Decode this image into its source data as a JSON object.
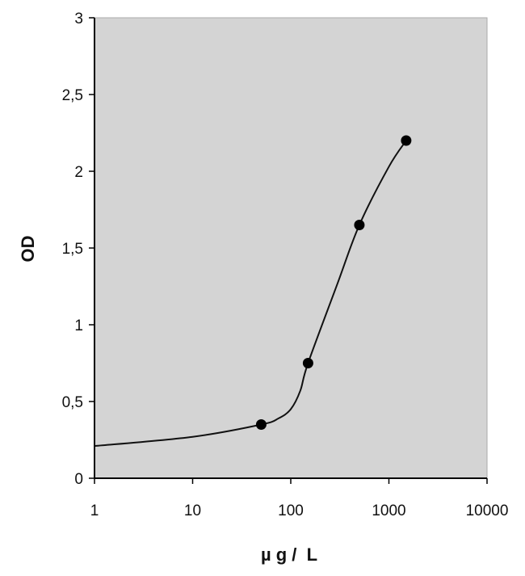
{
  "chart_data": {
    "type": "scatter",
    "title": "",
    "xlabel": "µ g /  L",
    "ylabel": "OD",
    "x_scale": "log",
    "xlim": [
      1,
      10000
    ],
    "ylim": [
      0,
      3
    ],
    "x_ticks": [
      1,
      10,
      100,
      1000,
      10000
    ],
    "x_tick_labels": [
      "1",
      "10",
      "100",
      "1000",
      "10000"
    ],
    "y_ticks": [
      0,
      0.5,
      1,
      1.5,
      2,
      2.5,
      3
    ],
    "y_tick_labels": [
      "0",
      "0,5",
      "1",
      "1,5",
      "2",
      "2,5",
      "3"
    ],
    "grid": false,
    "plot_background": "#d4d4d4",
    "series": [
      {
        "marker": "circle",
        "color": "#000000",
        "points": [
          {
            "x": 50,
            "y": 0.35
          },
          {
            "x": 150,
            "y": 0.75
          },
          {
            "x": 500,
            "y": 1.65
          },
          {
            "x": 1500,
            "y": 2.2
          }
        ]
      }
    ],
    "fit_curve": [
      {
        "x": 1,
        "y": 0.21
      },
      {
        "x": 10,
        "y": 0.27
      },
      {
        "x": 50,
        "y": 0.35
      },
      {
        "x": 75,
        "y": 0.39
      },
      {
        "x": 100,
        "y": 0.45
      },
      {
        "x": 125,
        "y": 0.57
      },
      {
        "x": 150,
        "y": 0.75
      },
      {
        "x": 300,
        "y": 1.27
      },
      {
        "x": 500,
        "y": 1.65
      },
      {
        "x": 1000,
        "y": 2.03
      },
      {
        "x": 1500,
        "y": 2.2
      }
    ]
  }
}
